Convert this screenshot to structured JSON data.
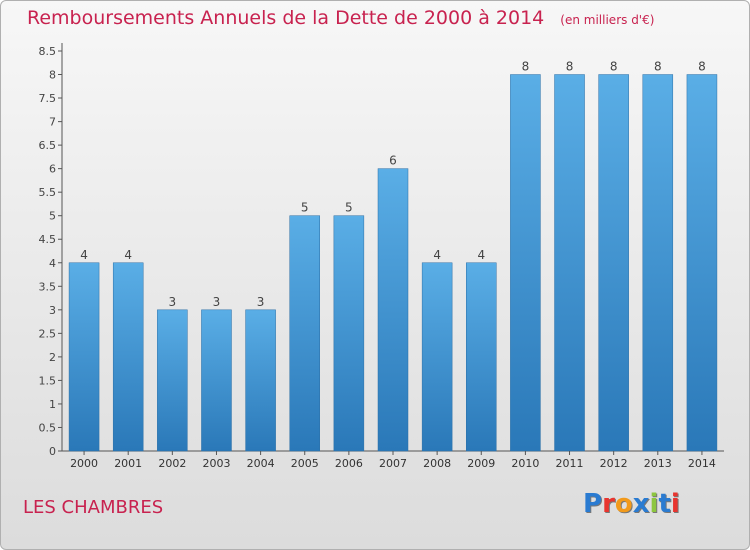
{
  "header": {
    "title": "Remboursements Annuels de la Dette de 2000 à 2014",
    "unit": "(en milliers d'€)"
  },
  "footer": {
    "place": "LES CHAMBRES",
    "logo_text": "Proxiti",
    "logo_colors": [
      "#2a7bd1",
      "#e8352f",
      "#f29a1b",
      "#2a7bd1",
      "#8dc63f",
      "#2a7bd1",
      "#e8352f"
    ]
  },
  "colors": {
    "title": "#c8224f",
    "bar_top": "#5aaee6",
    "bar_bottom": "#2a78b8"
  },
  "chart_data": {
    "type": "bar",
    "categories": [
      "2000",
      "2001",
      "2002",
      "2003",
      "2004",
      "2005",
      "2006",
      "2007",
      "2008",
      "2009",
      "2010",
      "2011",
      "2012",
      "2013",
      "2014"
    ],
    "values": [
      4,
      4,
      3,
      3,
      3,
      5,
      5,
      6,
      4,
      4,
      8,
      8,
      8,
      8,
      8
    ],
    "title": "Remboursements Annuels de la Dette de 2000 à 2014",
    "ylim": [
      0,
      8.5
    ],
    "yticks": [
      0,
      0.5,
      1,
      1.5,
      2,
      2.5,
      3,
      3.5,
      4,
      4.5,
      5,
      5.5,
      6,
      6.5,
      7,
      7.5,
      8,
      8.5
    ],
    "ytick_labels": [
      "0",
      "0.5",
      "1",
      "1.5",
      "2",
      "2.5",
      "3",
      "3.5",
      "4",
      "4.5",
      "5",
      "5.5",
      "6",
      "6.5",
      "7",
      "7.5",
      "8",
      "8.5"
    ],
    "grid": false,
    "data_labels": true
  }
}
